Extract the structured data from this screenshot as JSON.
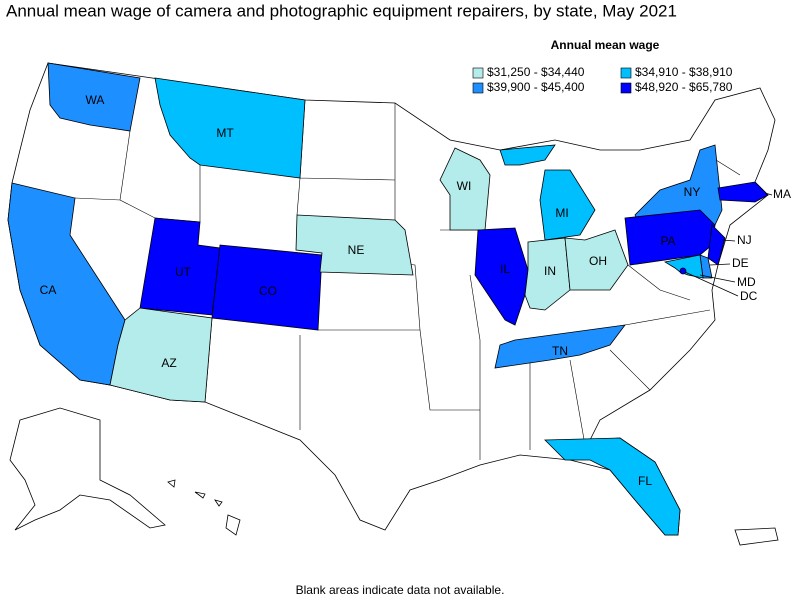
{
  "title": "Annual mean wage of camera and photographic equipment repairers, by state, May 2021",
  "legend": {
    "title": "Annual mean wage",
    "items": [
      {
        "label": "$31,250 - $34,440",
        "color": "#b3ecea"
      },
      {
        "label": "$34,910 - $38,910",
        "color": "#00bfff"
      },
      {
        "label": "$39,900 - $45,400",
        "color": "#1e8fff"
      },
      {
        "label": "$48,920 - $65,780",
        "color": "#0000ff"
      }
    ]
  },
  "states": [
    {
      "label": "WA",
      "bin": 2
    },
    {
      "label": "MT",
      "bin": 1
    },
    {
      "label": "CA",
      "bin": 2
    },
    {
      "label": "UT",
      "bin": 3
    },
    {
      "label": "CO",
      "bin": 3
    },
    {
      "label": "NE",
      "bin": 0
    },
    {
      "label": "AZ",
      "bin": 0
    },
    {
      "label": "WI",
      "bin": 0
    },
    {
      "label": "MI",
      "bin": 1
    },
    {
      "label": "IL",
      "bin": 3
    },
    {
      "label": "IN",
      "bin": 0
    },
    {
      "label": "OH",
      "bin": 0
    },
    {
      "label": "TN",
      "bin": 2
    },
    {
      "label": "NY",
      "bin": 2
    },
    {
      "label": "PA",
      "bin": 3
    },
    {
      "label": "NJ",
      "bin": 3
    },
    {
      "label": "DE",
      "bin": 2
    },
    {
      "label": "MD",
      "bin": 1
    },
    {
      "label": "DC",
      "bin": 3
    },
    {
      "label": "MA",
      "bin": 3
    },
    {
      "label": "FL",
      "bin": 1
    }
  ],
  "footnote": "Blank areas indicate data not available."
}
